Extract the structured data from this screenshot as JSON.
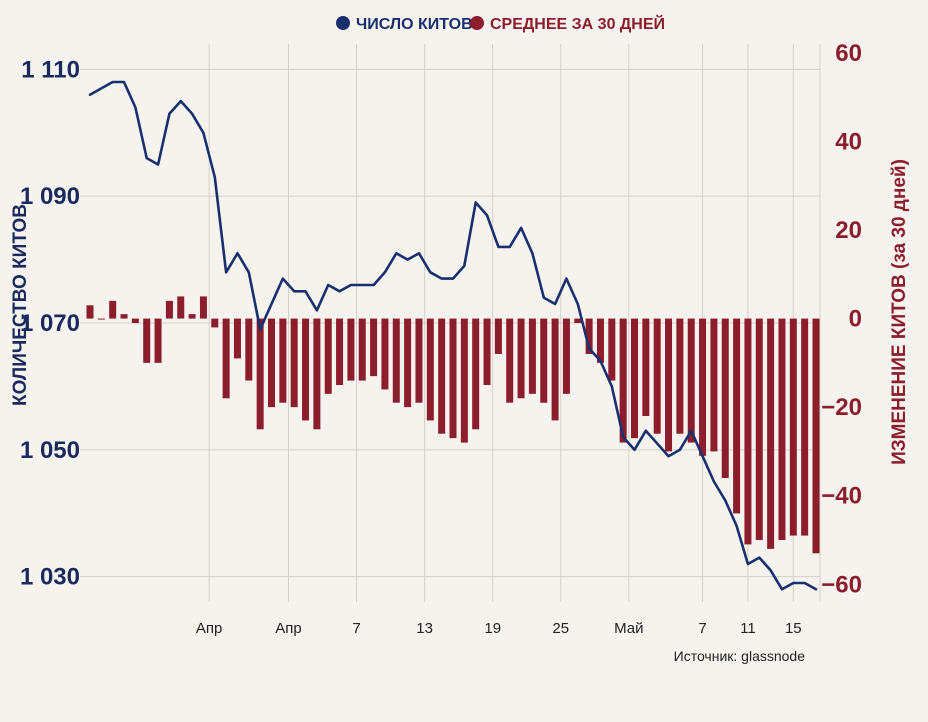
{
  "chart_data": {
    "type": "bar",
    "legend": {
      "placement": "top-center",
      "entries": [
        {
          "label": "ЧИСЛО КИТОВ",
          "color": "#1a2f6e"
        },
        {
          "label": "СРЕДНЕЕ ЗА 30 ДНЕЙ",
          "color": "#8b1d2c"
        }
      ]
    },
    "ylabel_left": "КОЛИЧЕСТВО КИТОВ",
    "ylabel_right": "ИЗМЕНЕНИЕ КИТОВ (за 30 дней)",
    "source": "Источник: glassnode",
    "left_axis": {
      "ylim": [
        1026,
        1114
      ],
      "ticks": [
        1110,
        1090,
        1070,
        1050,
        1030
      ],
      "tick_labels": [
        "1 110",
        "1 090",
        "1 070",
        "1 050",
        "1 030"
      ]
    },
    "right_axis": {
      "ylim": [
        -64,
        62
      ],
      "ticks": [
        60,
        40,
        20,
        0,
        -20,
        -40,
        -60
      ],
      "tick_labels": [
        "60",
        "40",
        "20",
        "0",
        "−20",
        "−40",
        "−60"
      ]
    },
    "x_ticks": [
      {
        "label": "Апр",
        "index": 10.5
      },
      {
        "label": "Апр",
        "index": 17.5
      },
      {
        "label": "7",
        "index": 23.5
      },
      {
        "label": "13",
        "index": 29.5
      },
      {
        "label": "19",
        "index": 35.5
      },
      {
        "label": "25",
        "index": 41.5
      },
      {
        "label": "Май",
        "index": 47.5
      },
      {
        "label": "7",
        "index": 54
      },
      {
        "label": "11",
        "index": 58
      },
      {
        "label": "15",
        "index": 62
      }
    ],
    "whales_series": {
      "name": "ЧИСЛО КИТОВ",
      "values": [
        1106,
        1107,
        1108,
        1108,
        1104,
        1096,
        1095,
        1103,
        1105,
        1103,
        1100,
        1093,
        1078,
        1081,
        1078,
        1069,
        1073,
        1077,
        1075,
        1075,
        1072,
        1076,
        1075,
        1076,
        1076,
        1076,
        1078,
        1081,
        1080,
        1081,
        1078,
        1077,
        1077,
        1079,
        1089,
        1087,
        1082,
        1082,
        1085,
        1081,
        1074,
        1073,
        1077,
        1073,
        1066,
        1064,
        1060,
        1052,
        1050,
        1053,
        1051,
        1049,
        1050,
        1053,
        1049,
        1045,
        1042,
        1038,
        1032,
        1033,
        1031,
        1028,
        1029,
        1029,
        1028
      ]
    },
    "avg_series": {
      "name": "СРЕДНЕЕ ЗА 30 ДНЕЙ",
      "values": [
        3,
        0,
        4,
        1,
        -1,
        -10,
        -10,
        4,
        5,
        1,
        5,
        -2,
        -18,
        -9,
        -14,
        -25,
        -20,
        -19,
        -20,
        -23,
        -25,
        -17,
        -15,
        -14,
        -14,
        -13,
        -16,
        -19,
        -20,
        -19,
        -23,
        -26,
        -27,
        -28,
        -25,
        -15,
        -8,
        -19,
        -18,
        -17,
        -19,
        -23,
        -17,
        -1,
        -8,
        -10,
        -14,
        -28,
        -27,
        -22,
        -26,
        -30,
        -26,
        -28,
        -31,
        -30,
        -36,
        -44,
        -51,
        -50,
        -52,
        -50,
        -49,
        -49,
        -53
      ]
    }
  }
}
